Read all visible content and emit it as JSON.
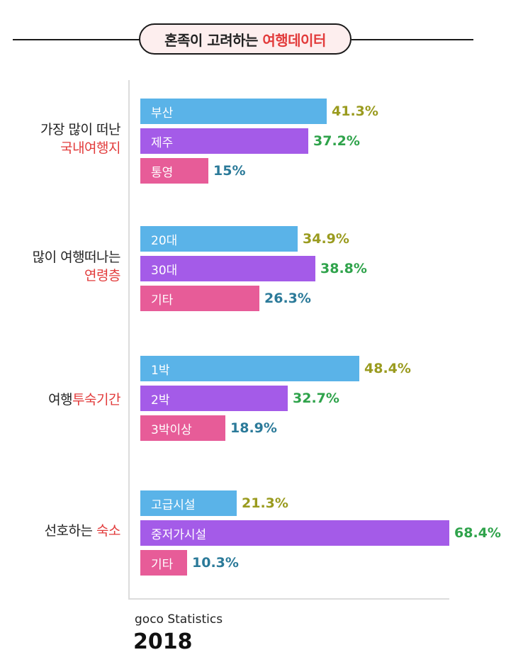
{
  "header": {
    "title_plain": "혼족이 고려하는 ",
    "title_accent": "여행데이터"
  },
  "chart_data": {
    "type": "bar",
    "orientation": "horizontal",
    "xlim": [
      0,
      68.4
    ],
    "groups": [
      {
        "label_plain": "가장 많이 떠난",
        "label_accent": "국내여행지",
        "accent_position": "second-line",
        "bars": [
          {
            "label": "부산",
            "value": 41.3,
            "display": "41.3%",
            "color": "#5ab3e8",
            "value_color": "#9a9b1f"
          },
          {
            "label": "제주",
            "value": 37.2,
            "display": "37.2%",
            "color": "#a45be8",
            "value_color": "#2fa34b"
          },
          {
            "label": "통영",
            "value": 15,
            "display": "15%",
            "color": "#e75c98",
            "value_color": "#2b7a99"
          }
        ]
      },
      {
        "label_plain": "많이 여행떠나는",
        "label_accent": "연령층",
        "accent_position": "second-line",
        "bars": [
          {
            "label": "20대",
            "value": 34.9,
            "display": "34.9%",
            "color": "#5ab3e8",
            "value_color": "#9a9b1f"
          },
          {
            "label": "30대",
            "value": 38.8,
            "display": "38.8%",
            "color": "#a45be8",
            "value_color": "#2fa34b"
          },
          {
            "label": "기타",
            "value": 26.3,
            "display": "26.3%",
            "color": "#e75c98",
            "value_color": "#2b7a99"
          }
        ]
      },
      {
        "label_plain": "여행",
        "label_accent": "투숙기간",
        "accent_position": "inline",
        "bars": [
          {
            "label": "1박",
            "value": 48.4,
            "display": "48.4%",
            "color": "#5ab3e8",
            "value_color": "#9a9b1f"
          },
          {
            "label": "2박",
            "value": 32.7,
            "display": "32.7%",
            "color": "#a45be8",
            "value_color": "#2fa34b"
          },
          {
            "label": "3박이상",
            "value": 18.9,
            "display": "18.9%",
            "color": "#e75c98",
            "value_color": "#2b7a99"
          }
        ]
      },
      {
        "label_plain": "선호하는 ",
        "label_accent": "숙소",
        "accent_position": "inline",
        "bars": [
          {
            "label": "고급시설",
            "value": 21.3,
            "display": "21.3%",
            "color": "#5ab3e8",
            "value_color": "#9a9b1f"
          },
          {
            "label": "중저가시설",
            "value": 68.4,
            "display": "68.4%",
            "color": "#a45be8",
            "value_color": "#2fa34b"
          },
          {
            "label": "기타",
            "value": 10.3,
            "display": "10.3%",
            "color": "#e75c98",
            "value_color": "#2b7a99"
          }
        ]
      }
    ]
  },
  "footer": {
    "source": "goco Statistics",
    "year": "2018"
  }
}
